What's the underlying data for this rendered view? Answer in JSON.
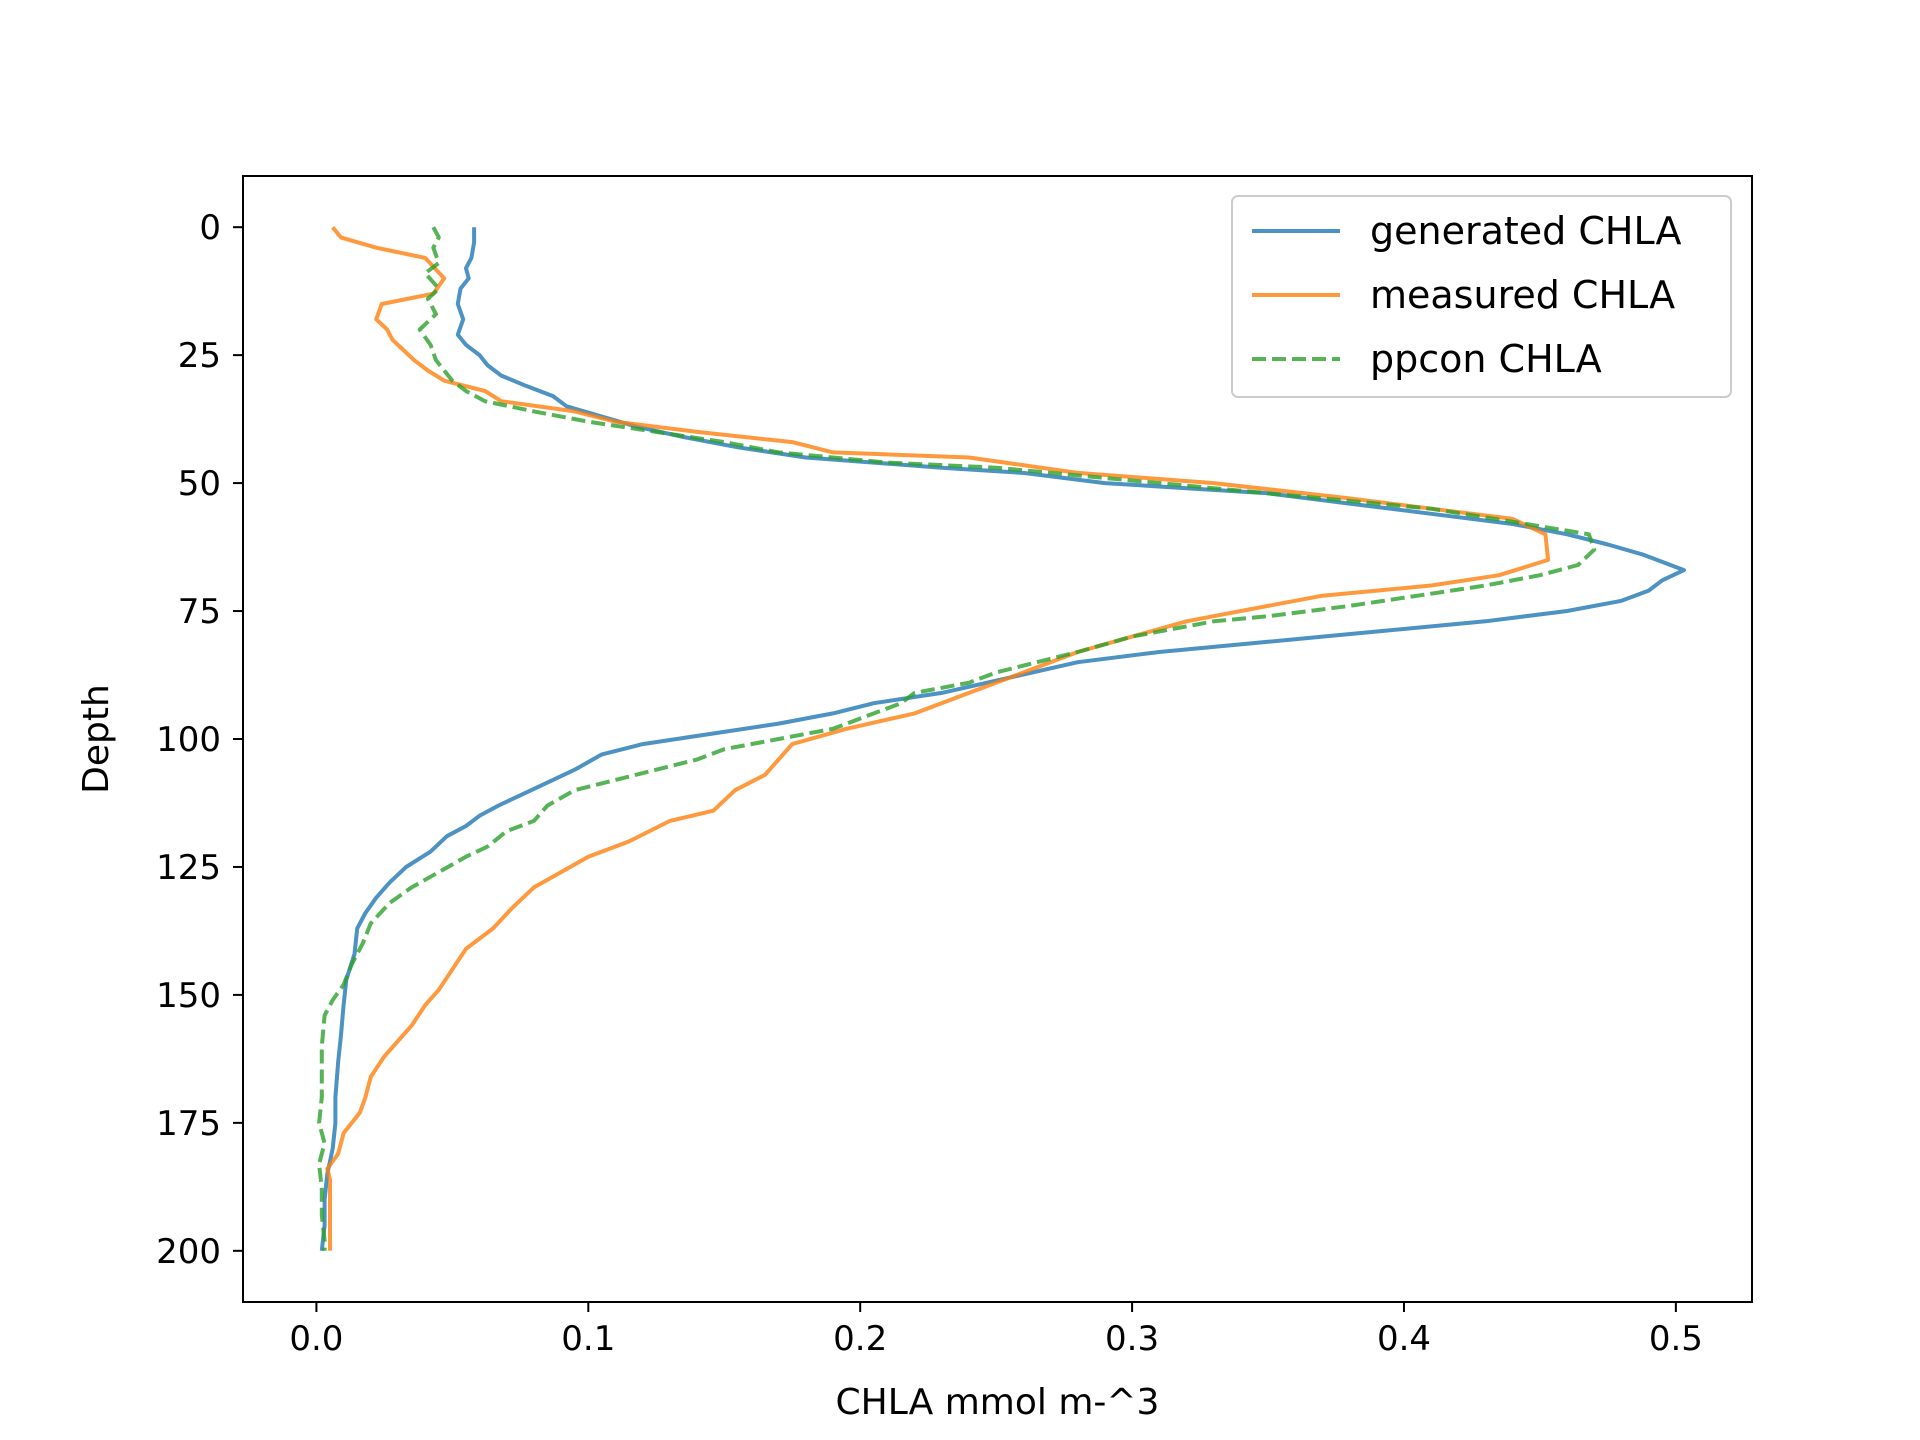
{
  "chart_data": {
    "type": "line",
    "title": "",
    "xlabel": "CHLA mmol m-^3",
    "ylabel": "Depth",
    "xlim": [
      -0.027,
      0.528
    ],
    "ylim": [
      210,
      -10
    ],
    "y_inverted": true,
    "grid": false,
    "legend_position": "top-right",
    "xticks": [
      0.0,
      0.1,
      0.2,
      0.3,
      0.4,
      0.5
    ],
    "xtick_labels": [
      "0.0",
      "0.1",
      "0.2",
      "0.3",
      "0.4",
      "0.5"
    ],
    "yticks": [
      0,
      25,
      50,
      75,
      100,
      125,
      150,
      175,
      200
    ],
    "ytick_labels": [
      "0",
      "25",
      "50",
      "75",
      "100",
      "125",
      "150",
      "175",
      "200"
    ],
    "series": [
      {
        "name": "generated CHLA",
        "color": "#1f77b4",
        "style": "solid",
        "points": [
          [
            0.058,
            0
          ],
          [
            0.058,
            3
          ],
          [
            0.057,
            6
          ],
          [
            0.055,
            8
          ],
          [
            0.056,
            10
          ],
          [
            0.053,
            12
          ],
          [
            0.052,
            15
          ],
          [
            0.054,
            18
          ],
          [
            0.052,
            21
          ],
          [
            0.055,
            23
          ],
          [
            0.06,
            25
          ],
          [
            0.063,
            27
          ],
          [
            0.068,
            29
          ],
          [
            0.077,
            31
          ],
          [
            0.087,
            33
          ],
          [
            0.092,
            35
          ],
          [
            0.105,
            37
          ],
          [
            0.118,
            39
          ],
          [
            0.135,
            41
          ],
          [
            0.155,
            43
          ],
          [
            0.18,
            45
          ],
          [
            0.205,
            46
          ],
          [
            0.23,
            47
          ],
          [
            0.26,
            48
          ],
          [
            0.29,
            50
          ],
          [
            0.32,
            51
          ],
          [
            0.35,
            52
          ],
          [
            0.38,
            54
          ],
          [
            0.41,
            56
          ],
          [
            0.44,
            58
          ],
          [
            0.46,
            60
          ],
          [
            0.475,
            62
          ],
          [
            0.488,
            64
          ],
          [
            0.503,
            67
          ],
          [
            0.495,
            69
          ],
          [
            0.49,
            71
          ],
          [
            0.48,
            73
          ],
          [
            0.46,
            75
          ],
          [
            0.43,
            77
          ],
          [
            0.39,
            79
          ],
          [
            0.35,
            81
          ],
          [
            0.31,
            83
          ],
          [
            0.28,
            85
          ],
          [
            0.255,
            88
          ],
          [
            0.23,
            91
          ],
          [
            0.205,
            93
          ],
          [
            0.19,
            95
          ],
          [
            0.17,
            97
          ],
          [
            0.145,
            99
          ],
          [
            0.12,
            101
          ],
          [
            0.105,
            103
          ],
          [
            0.095,
            106
          ],
          [
            0.087,
            108
          ],
          [
            0.075,
            111
          ],
          [
            0.067,
            113
          ],
          [
            0.06,
            115
          ],
          [
            0.055,
            117
          ],
          [
            0.048,
            119
          ],
          [
            0.042,
            122
          ],
          [
            0.033,
            125
          ],
          [
            0.027,
            128
          ],
          [
            0.022,
            131
          ],
          [
            0.018,
            134
          ],
          [
            0.015,
            137
          ],
          [
            0.014,
            142
          ],
          [
            0.011,
            147
          ],
          [
            0.01,
            152
          ],
          [
            0.009,
            158
          ],
          [
            0.008,
            163
          ],
          [
            0.007,
            170
          ],
          [
            0.007,
            175
          ],
          [
            0.006,
            180
          ],
          [
            0.004,
            185
          ],
          [
            0.003,
            190
          ],
          [
            0.003,
            195
          ],
          [
            0.002,
            200
          ]
        ]
      },
      {
        "name": "measured CHLA",
        "color": "#ff7f0e",
        "style": "solid",
        "points": [
          [
            0.006,
            0
          ],
          [
            0.009,
            2
          ],
          [
            0.022,
            4
          ],
          [
            0.04,
            6
          ],
          [
            0.047,
            10
          ],
          [
            0.043,
            13
          ],
          [
            0.024,
            15
          ],
          [
            0.022,
            18
          ],
          [
            0.026,
            20
          ],
          [
            0.028,
            22
          ],
          [
            0.032,
            24
          ],
          [
            0.036,
            26
          ],
          [
            0.041,
            28
          ],
          [
            0.047,
            30
          ],
          [
            0.062,
            32
          ],
          [
            0.068,
            34
          ],
          [
            0.095,
            36
          ],
          [
            0.11,
            38
          ],
          [
            0.14,
            40
          ],
          [
            0.175,
            42
          ],
          [
            0.19,
            44
          ],
          [
            0.24,
            45
          ],
          [
            0.28,
            48
          ],
          [
            0.33,
            50
          ],
          [
            0.38,
            53
          ],
          [
            0.41,
            55
          ],
          [
            0.44,
            57
          ],
          [
            0.452,
            60
          ],
          [
            0.453,
            65
          ],
          [
            0.435,
            68
          ],
          [
            0.41,
            70
          ],
          [
            0.37,
            72
          ],
          [
            0.35,
            74
          ],
          [
            0.32,
            77
          ],
          [
            0.3,
            80
          ],
          [
            0.28,
            83
          ],
          [
            0.26,
            87
          ],
          [
            0.24,
            91
          ],
          [
            0.22,
            95
          ],
          [
            0.195,
            98
          ],
          [
            0.175,
            101
          ],
          [
            0.17,
            104
          ],
          [
            0.165,
            107
          ],
          [
            0.154,
            110
          ],
          [
            0.146,
            114
          ],
          [
            0.13,
            116
          ],
          [
            0.115,
            120
          ],
          [
            0.1,
            123
          ],
          [
            0.09,
            126
          ],
          [
            0.08,
            129
          ],
          [
            0.072,
            133
          ],
          [
            0.065,
            137
          ],
          [
            0.055,
            141
          ],
          [
            0.05,
            145
          ],
          [
            0.045,
            149
          ],
          [
            0.04,
            152
          ],
          [
            0.035,
            156
          ],
          [
            0.03,
            159
          ],
          [
            0.025,
            162
          ],
          [
            0.02,
            166
          ],
          [
            0.018,
            170
          ],
          [
            0.016,
            173
          ],
          [
            0.01,
            177
          ],
          [
            0.008,
            181
          ],
          [
            0.004,
            184
          ],
          [
            0.005,
            186
          ],
          [
            0.005,
            188
          ],
          [
            0.005,
            200
          ]
        ]
      },
      {
        "name": "ppcon CHLA",
        "color": "#2ca02c",
        "style": "dashed",
        "points": [
          [
            0.043,
            0
          ],
          [
            0.045,
            2
          ],
          [
            0.043,
            4
          ],
          [
            0.045,
            7
          ],
          [
            0.04,
            9
          ],
          [
            0.045,
            12
          ],
          [
            0.041,
            14
          ],
          [
            0.044,
            17
          ],
          [
            0.038,
            20
          ],
          [
            0.042,
            23
          ],
          [
            0.044,
            26
          ],
          [
            0.047,
            28
          ],
          [
            0.05,
            30
          ],
          [
            0.055,
            32
          ],
          [
            0.062,
            34
          ],
          [
            0.08,
            36
          ],
          [
            0.1,
            38
          ],
          [
            0.125,
            40
          ],
          [
            0.15,
            42
          ],
          [
            0.17,
            44
          ],
          [
            0.21,
            46
          ],
          [
            0.25,
            47
          ],
          [
            0.29,
            49
          ],
          [
            0.33,
            51
          ],
          [
            0.37,
            53
          ],
          [
            0.41,
            55
          ],
          [
            0.445,
            58
          ],
          [
            0.468,
            60
          ],
          [
            0.47,
            63
          ],
          [
            0.464,
            66
          ],
          [
            0.45,
            68
          ],
          [
            0.43,
            70
          ],
          [
            0.405,
            72
          ],
          [
            0.38,
            74
          ],
          [
            0.35,
            76
          ],
          [
            0.33,
            77
          ],
          [
            0.3,
            80
          ],
          [
            0.28,
            83
          ],
          [
            0.265,
            85
          ],
          [
            0.25,
            87
          ],
          [
            0.24,
            89
          ],
          [
            0.22,
            91
          ],
          [
            0.215,
            93
          ],
          [
            0.2,
            96
          ],
          [
            0.19,
            98
          ],
          [
            0.17,
            100
          ],
          [
            0.15,
            102
          ],
          [
            0.14,
            104
          ],
          [
            0.125,
            106
          ],
          [
            0.11,
            108
          ],
          [
            0.095,
            110
          ],
          [
            0.085,
            113
          ],
          [
            0.08,
            116
          ],
          [
            0.07,
            118
          ],
          [
            0.063,
            121
          ],
          [
            0.055,
            123
          ],
          [
            0.045,
            126
          ],
          [
            0.035,
            129
          ],
          [
            0.027,
            132
          ],
          [
            0.02,
            136
          ],
          [
            0.017,
            140
          ],
          [
            0.013,
            144
          ],
          [
            0.01,
            148
          ],
          [
            0.006,
            151
          ],
          [
            0.003,
            154
          ],
          [
            0.002,
            160
          ],
          [
            0.002,
            165
          ],
          [
            0.002,
            170
          ],
          [
            0.001,
            175
          ],
          [
            0.003,
            179
          ],
          [
            0.001,
            183
          ],
          [
            0.002,
            188
          ],
          [
            0.002,
            193
          ],
          [
            0.003,
            198
          ],
          [
            0.003,
            200
          ]
        ]
      }
    ]
  }
}
